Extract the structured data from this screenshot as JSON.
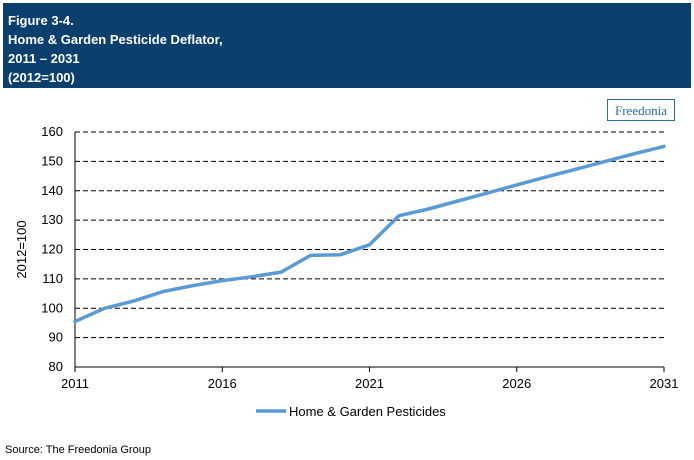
{
  "header": {
    "line1": "Figure 3-4.",
    "line2": "Home & Garden Pesticide Deflator,",
    "line3": "2011 – 2031",
    "line4": "(2012=100)"
  },
  "logo": {
    "text": "Freedonia"
  },
  "source": "Source: The Freedonia Group",
  "colors": {
    "header_bg": "#0b3f6e",
    "series": "#5b9bd5"
  },
  "chart_data": {
    "type": "line",
    "title": "",
    "xlabel": "",
    "ylabel": "2012=100",
    "xlim": [
      2011,
      2031
    ],
    "ylim": [
      80,
      160
    ],
    "x_ticks": [
      2011,
      2016,
      2021,
      2026,
      2031
    ],
    "y_ticks": [
      80,
      90,
      100,
      110,
      120,
      130,
      140,
      150,
      160
    ],
    "grid": "horizontal dashed",
    "legend_position": "bottom",
    "series": [
      {
        "name": "Home & Garden Pesticides",
        "x": [
          2011,
          2012,
          2013,
          2014,
          2015,
          2016,
          2017,
          2018,
          2019,
          2020,
          2021,
          2022,
          2023,
          2024,
          2025,
          2026,
          2027,
          2028,
          2029,
          2030,
          2031
        ],
        "y": [
          95.5,
          100,
          102.5,
          105.7,
          107.7,
          109.4,
          110.7,
          112.3,
          118,
          118.2,
          121.6,
          131.5,
          133.8,
          136.5,
          139.2,
          142,
          144.7,
          147.3,
          150,
          152.6,
          155.1
        ]
      }
    ]
  }
}
